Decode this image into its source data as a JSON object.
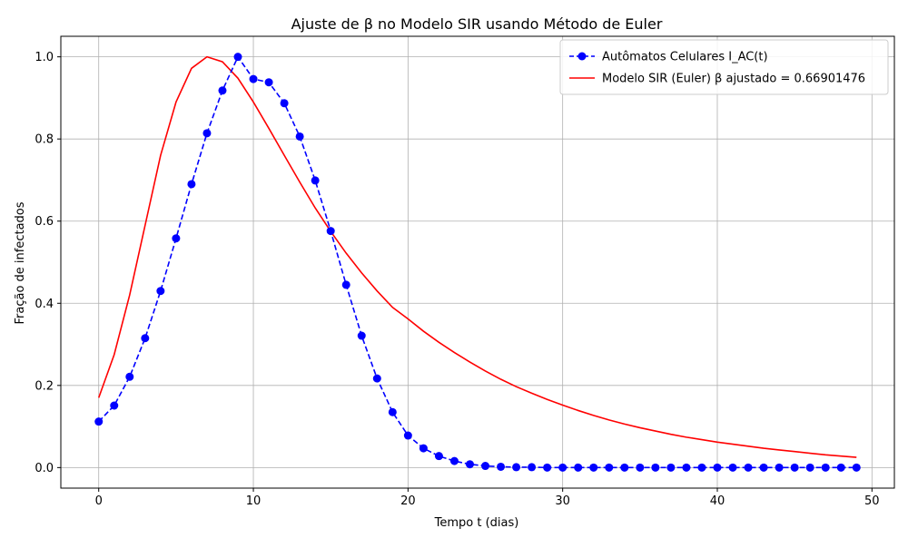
{
  "chart_data": {
    "type": "line",
    "title": "Ajuste de β no Modelo SIR usando Método de Euler",
    "xlabel": "Tempo t (dias)",
    "ylabel": "Fração de infectados",
    "xlim": [
      -2.45,
      51.45
    ],
    "ylim": [
      -0.05,
      1.05
    ],
    "xticks": [
      0,
      10,
      20,
      30,
      40,
      50
    ],
    "xtick_labels": [
      "0",
      "10",
      "20",
      "30",
      "40",
      "50"
    ],
    "yticks": [
      0.0,
      0.2,
      0.4,
      0.6,
      0.8,
      1.0
    ],
    "ytick_labels": [
      "0.0",
      "0.2",
      "0.4",
      "0.6",
      "0.8",
      "1.0"
    ],
    "grid": true,
    "legend_position": "top-right",
    "series": [
      {
        "name": "Autômatos Celulares I_AC(t)",
        "color": "#0000ff",
        "style": "dashed-markers",
        "x": [
          0,
          1,
          2,
          3,
          4,
          5,
          6,
          7,
          8,
          9,
          10,
          11,
          12,
          13,
          14,
          15,
          16,
          17,
          18,
          19,
          20,
          21,
          22,
          23,
          24,
          25,
          26,
          27,
          28,
          29,
          30,
          31,
          32,
          33,
          34,
          35,
          36,
          37,
          38,
          39,
          40,
          41,
          42,
          43,
          44,
          45,
          46,
          47,
          48,
          49
        ],
        "y": [
          0.112,
          0.151,
          0.221,
          0.315,
          0.43,
          0.558,
          0.69,
          0.814,
          0.918,
          1.0,
          0.946,
          0.938,
          0.887,
          0.806,
          0.699,
          0.576,
          0.445,
          0.321,
          0.217,
          0.135,
          0.078,
          0.047,
          0.028,
          0.016,
          0.008,
          0.004,
          0.002,
          0.001,
          0.001,
          0.0,
          0.0,
          0.0,
          0.0,
          0.0,
          0.0,
          0.0,
          0.0,
          0.0,
          0.0,
          0.0,
          0.0,
          0.0,
          0.0,
          0.0,
          0.0,
          0.0,
          0.0,
          0.0,
          0.0,
          0.0
        ]
      },
      {
        "name": "Modelo SIR (Euler) β ajustado = 0.66901476",
        "color": "#ff0000",
        "style": "solid",
        "x": [
          0,
          1,
          2,
          3,
          4,
          5,
          6,
          7,
          8,
          9,
          10,
          11,
          12,
          13,
          14,
          15,
          16,
          17,
          18,
          19,
          20,
          21,
          22,
          23,
          24,
          25,
          26,
          27,
          28,
          29,
          30,
          31,
          32,
          33,
          34,
          35,
          36,
          37,
          38,
          39,
          40,
          41,
          42,
          43,
          44,
          45,
          46,
          47,
          48,
          49
        ],
        "y": [
          0.17,
          0.275,
          0.42,
          0.59,
          0.76,
          0.89,
          0.972,
          1.0,
          0.988,
          0.948,
          0.89,
          0.826,
          0.76,
          0.695,
          0.632,
          0.575,
          0.522,
          0.474,
          0.43,
          0.39,
          0.362,
          0.332,
          0.305,
          0.28,
          0.257,
          0.235,
          0.215,
          0.197,
          0.181,
          0.166,
          0.152,
          0.139,
          0.127,
          0.116,
          0.106,
          0.097,
          0.089,
          0.081,
          0.074,
          0.068,
          0.062,
          0.057,
          0.052,
          0.047,
          0.043,
          0.039,
          0.035,
          0.031,
          0.028,
          0.025
        ]
      }
    ]
  }
}
